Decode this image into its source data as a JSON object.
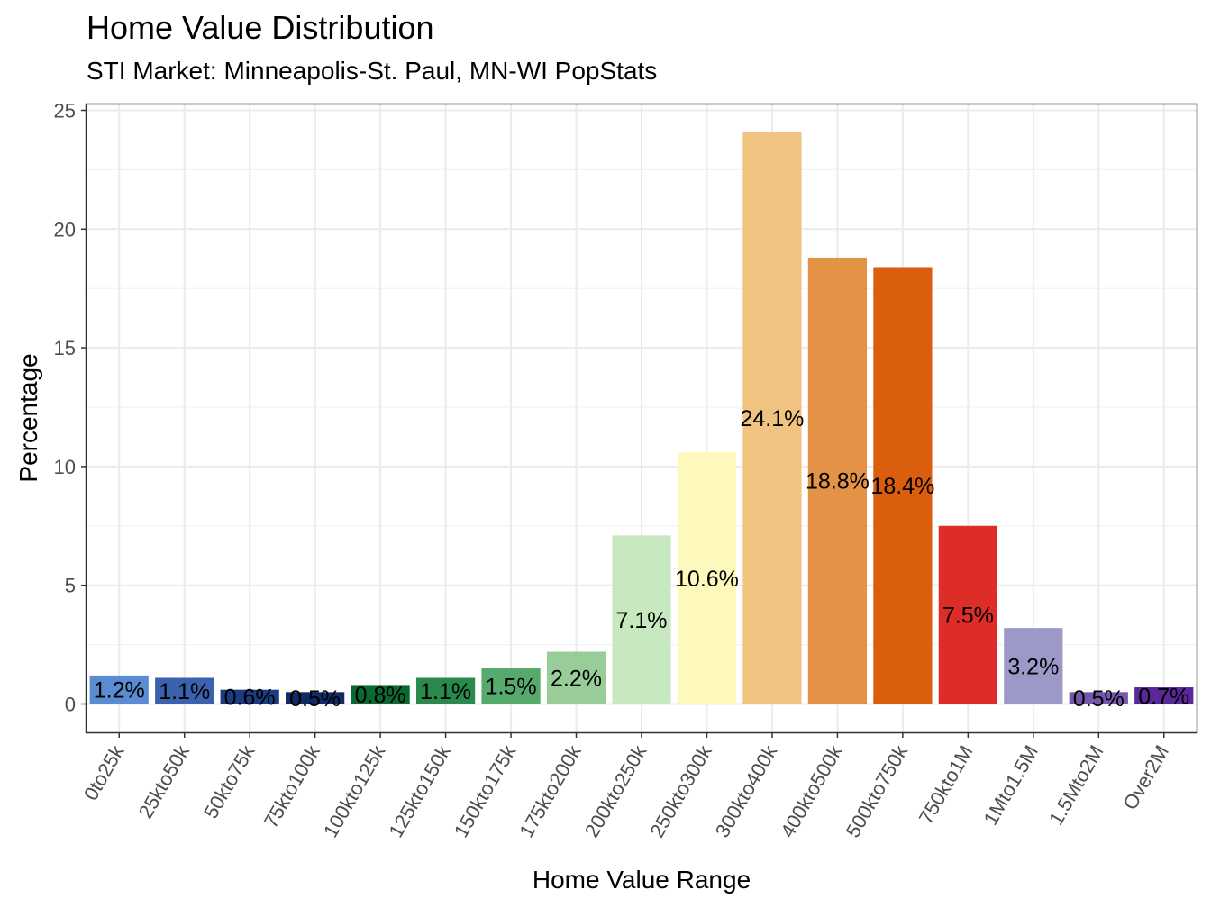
{
  "chart_data": {
    "type": "bar",
    "title": "Home Value Distribution",
    "subtitle": "STI Market: Minneapolis-St. Paul, MN-WI PopStats",
    "xlabel": "Home Value Range",
    "ylabel": "Percentage",
    "ylim": [
      -1.2,
      25.3
    ],
    "yticks": [
      0,
      5,
      10,
      15,
      20,
      25
    ],
    "grid": true,
    "categories": [
      "0to25k",
      "25kto50k",
      "50kto75k",
      "75kto100k",
      "100kto125k",
      "125kto150k",
      "150kto175k",
      "175kto200k",
      "200kto250k",
      "250kto300k",
      "300kto400k",
      "400kto500k",
      "500kto750k",
      "750kto1M",
      "1Mto1.5M",
      "1.5Mto2M",
      "Over2M"
    ],
    "values": [
      1.2,
      1.1,
      0.6,
      0.5,
      0.8,
      1.1,
      1.5,
      2.2,
      7.1,
      10.6,
      24.1,
      18.8,
      18.4,
      7.5,
      3.2,
      0.5,
      0.7
    ],
    "labels": [
      "1.2%",
      "1.1%",
      "0.6%",
      "0.5%",
      "0.8%",
      "1.1%",
      "1.5%",
      "2.2%",
      "7.1%",
      "10.6%",
      "24.1%",
      "18.8%",
      "18.4%",
      "7.5%",
      "3.2%",
      "0.5%",
      "0.7%"
    ],
    "colors": [
      "#5b8bd2",
      "#3a62ae",
      "#1b3c80",
      "#102a66",
      "#0a6a32",
      "#2a8a4e",
      "#56aa6c",
      "#98cc98",
      "#c8e8c0",
      "#fff8bc",
      "#f0c480",
      "#e49246",
      "#da5e0e",
      "#de2c28",
      "#9c98c8",
      "#7558ac",
      "#5a2898"
    ]
  }
}
